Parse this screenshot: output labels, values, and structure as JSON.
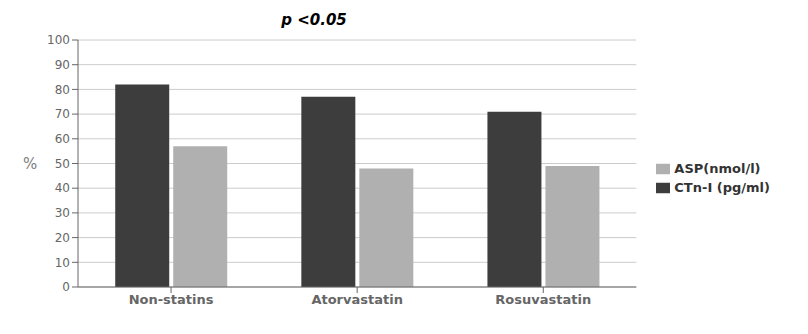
{
  "chart_data": {
    "type": "bar",
    "title": "p <0.05",
    "categories": [
      "Non-statins",
      "Atorvastatin",
      "Rosuvastatin"
    ],
    "series": [
      {
        "name": "CTn-I (pg/ml)",
        "color": "#3d3d3d",
        "values": [
          82,
          77,
          71
        ]
      },
      {
        "name": "ASP(nmol/l)",
        "color": "#b0b0b0",
        "values": [
          57,
          48,
          49
        ]
      }
    ],
    "ylabel": "%",
    "ylim": [
      0,
      100
    ],
    "yticks": [
      0,
      10,
      20,
      30,
      40,
      50,
      60,
      70,
      80,
      90,
      100
    ],
    "grid": true,
    "legend": "right"
  }
}
